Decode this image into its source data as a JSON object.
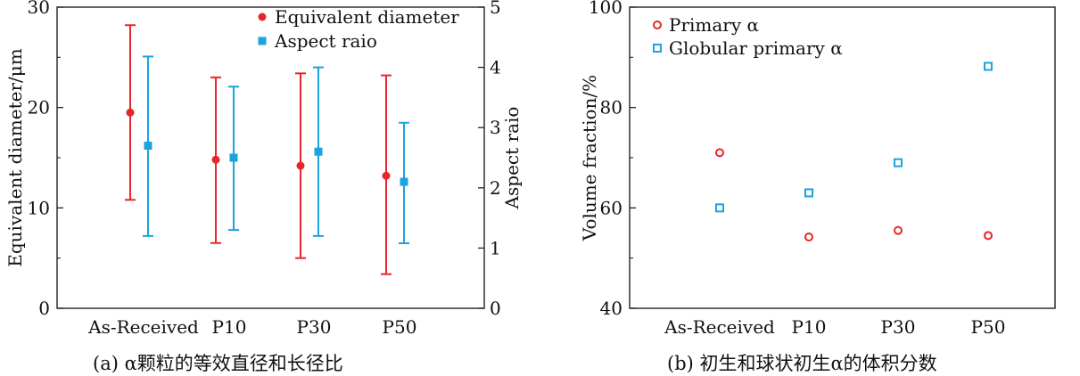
{
  "charts": [
    {
      "chart_data": {
        "type": "scatter",
        "categories": [
          "As-Received",
          "P10",
          "P30",
          "P50"
        ],
        "ylabel": "Equivalent diameter/μm",
        "ylim": [
          0,
          30
        ],
        "yticks": [
          0,
          10,
          20,
          30
        ],
        "y2label": "Aspect raio",
        "y2lim": [
          0,
          5
        ],
        "y2ticks": [
          0,
          1,
          2,
          3,
          4,
          5
        ],
        "legend_position": "top-right",
        "series": [
          {
            "name": "Equivalent diameter",
            "axis": "left",
            "color": "#e8262a",
            "marker": "circle",
            "values": [
              19.5,
              14.8,
              14.2,
              13.2
            ],
            "err_low": [
              10.8,
              6.5,
              5.0,
              3.4
            ],
            "err_high": [
              28.2,
              23.0,
              23.4,
              23.2
            ]
          },
          {
            "name": "Aspect raio",
            "axis": "right",
            "color": "#1aa3dc",
            "marker": "square",
            "values": [
              2.7,
              2.5,
              2.6,
              2.1
            ],
            "err_low": [
              1.2,
              1.3,
              1.2,
              1.08
            ],
            "err_high": [
              4.18,
              3.68,
              4.0,
              3.08
            ]
          }
        ],
        "caption": "(a) α颗粒的等效直径和长径比"
      }
    },
    {
      "chart_data": {
        "type": "scatter",
        "categories": [
          "As-Received",
          "P10",
          "P30",
          "P50"
        ],
        "ylabel": "Volume fraction/%",
        "ylim": [
          40,
          100
        ],
        "yticks": [
          40,
          60,
          80,
          100
        ],
        "legend_position": "top-left",
        "series": [
          {
            "name": "Primary α",
            "color": "#e8262a",
            "marker": "open-circle",
            "values": [
              71,
              54.2,
              55.5,
              54.5
            ]
          },
          {
            "name": "Globular primary α",
            "color": "#1aa3dc",
            "marker": "open-square",
            "values": [
              60,
              63,
              69,
              88.2
            ]
          }
        ],
        "caption": "(b) 初生和球状初生α的体积分数"
      }
    }
  ]
}
